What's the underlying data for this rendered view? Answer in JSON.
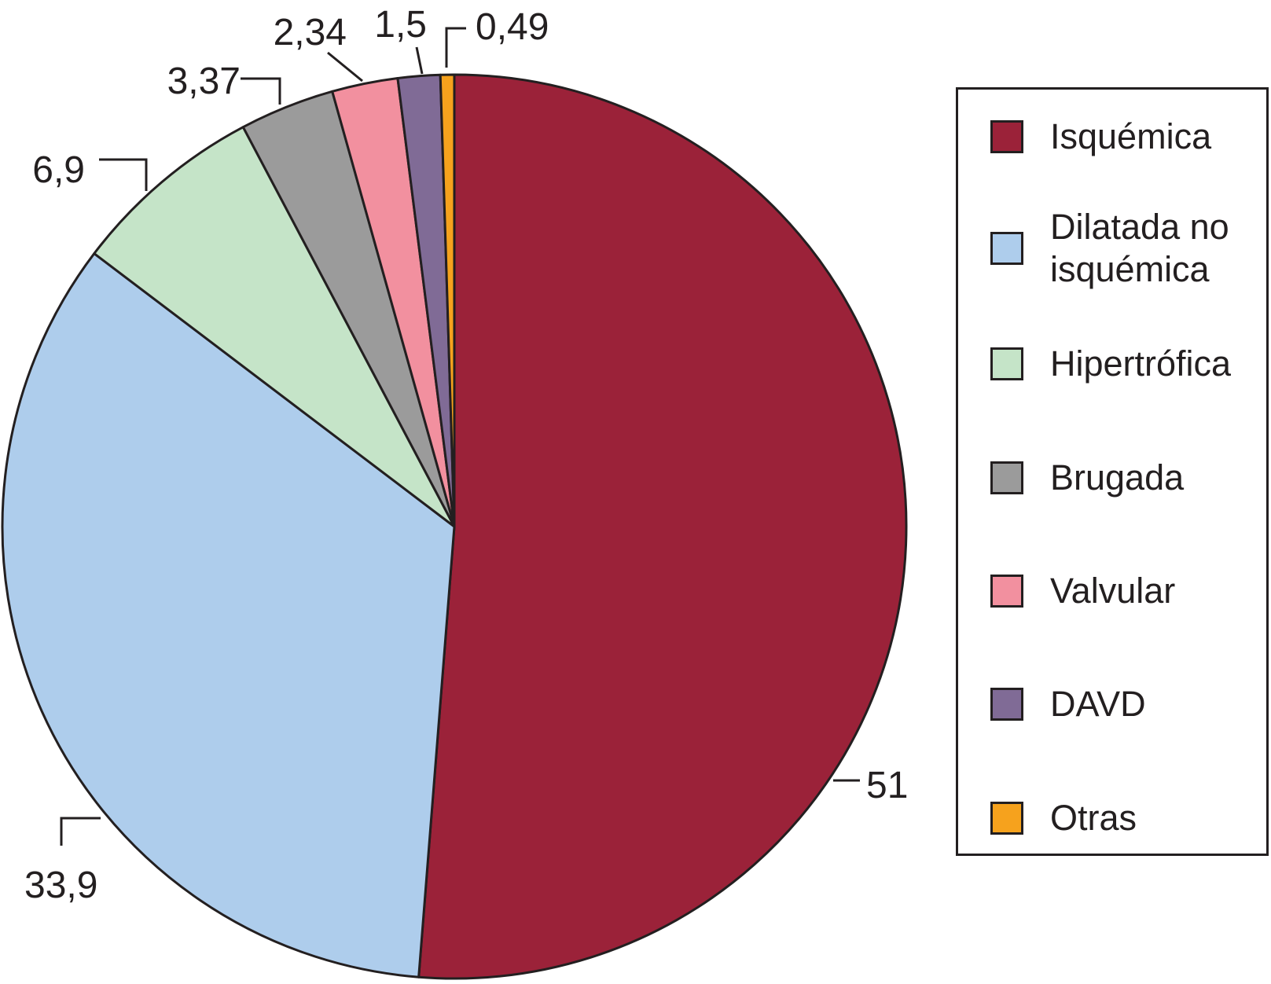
{
  "chart_data": {
    "type": "pie",
    "categories": [
      "Isquémica",
      "Dilatada no isquémica",
      "Hipertrófica",
      "Brugada",
      "Valvular",
      "DAVD",
      "Otras"
    ],
    "values": [
      51,
      33.9,
      6.9,
      3.37,
      2.34,
      1.5,
      0.49
    ],
    "value_labels": [
      "51",
      "33,9",
      "6,9",
      "3,37",
      "2,34",
      "1,5",
      "0,49"
    ],
    "colors": [
      "#9b2239",
      "#aecdec",
      "#c5e4c8",
      "#9b9b9b",
      "#f2909f",
      "#806b96",
      "#f6a21d"
    ],
    "start_angle": "12 o'clock",
    "direction": "clockwise",
    "legend": "right",
    "title": ""
  },
  "legend": {
    "items": [
      {
        "label": "Isquémica",
        "color": "#9b2239"
      },
      {
        "label": "Dilatada no isquémica",
        "color": "#aecdec"
      },
      {
        "label": "Hipertrófica",
        "color": "#c5e4c8"
      },
      {
        "label": "Brugada",
        "color": "#9b9b9b"
      },
      {
        "label": "Valvular",
        "color": "#f2909f"
      },
      {
        "label": "DAVD",
        "color": "#806b96"
      },
      {
        "label": "Otras",
        "color": "#f6a21d"
      }
    ]
  }
}
